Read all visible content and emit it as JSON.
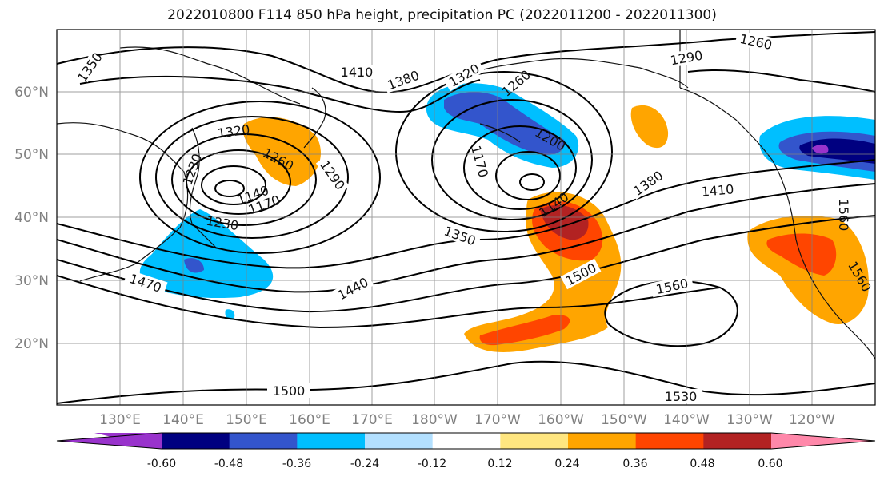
{
  "title": "2022010800 F114 850 hPa height, precipitation PC (2022011200 - 2022011300)",
  "latitude_labels": [
    "60°N",
    "50°N",
    "40°N",
    "30°N",
    "20°N"
  ],
  "longitude_labels": [
    "130°E",
    "140°E",
    "150°E",
    "160°E",
    "170°E",
    "180°W",
    "170°W",
    "160°W",
    "150°W",
    "140°W",
    "130°W",
    "120°W"
  ],
  "contour_labels": [
    "1350",
    "1410",
    "1380",
    "1320",
    "1260",
    "1290",
    "1260",
    "1320",
    "1260",
    "1200",
    "1170",
    "1230",
    "1170",
    "1140",
    "1230",
    "1290",
    "1140",
    "1380",
    "1410",
    "1350",
    "1440",
    "1470",
    "1500",
    "1560",
    "1500",
    "1530",
    "1560",
    "1560"
  ],
  "colorbar": {
    "labels": [
      "-0.60",
      "-0.48",
      "-0.36",
      "-0.24",
      "-0.12",
      "0.12",
      "0.24",
      "0.36",
      "0.48",
      "0.60"
    ],
    "colors": [
      "#9933cc",
      "#000080",
      "#3355cc",
      "#00bfff",
      "#b3e0ff",
      "#ffffff",
      "#ffe680",
      "#ffa500",
      "#ff4500",
      "#b22222",
      "#ff88aa"
    ]
  }
}
